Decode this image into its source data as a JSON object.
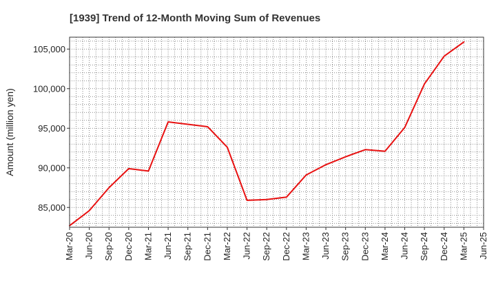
{
  "chart_data": {
    "type": "line",
    "title": "[1939]  Trend of 12-Month Moving Sum of Revenues",
    "xlabel": "",
    "ylabel": "Amount (million yen)",
    "x_ticks": [
      "Mar-20",
      "Jun-20",
      "Sep-20",
      "Dec-20",
      "Mar-21",
      "Jun-21",
      "Sep-21",
      "Dec-21",
      "Mar-22",
      "Jun-22",
      "Sep-22",
      "Dec-22",
      "Mar-23",
      "Jun-23",
      "Sep-23",
      "Dec-23",
      "Mar-24",
      "Jun-24",
      "Sep-24",
      "Dec-24",
      "Mar-25",
      "Jun-25"
    ],
    "y_ticks": [
      85000,
      90000,
      95000,
      100000,
      105000
    ],
    "y_tick_labels": [
      "85,000",
      "90,000",
      "95,000",
      "100,000",
      "105,000"
    ],
    "ylim": [
      82500,
      106500
    ],
    "grid": true,
    "series": [
      {
        "color": "#e81010",
        "x": [
          "Mar-20",
          "Jun-20",
          "Sep-20",
          "Dec-20",
          "Mar-21",
          "Jun-21",
          "Sep-21",
          "Dec-21",
          "Mar-22",
          "Jun-22",
          "Sep-22",
          "Dec-22",
          "Mar-23",
          "Jun-23",
          "Sep-23",
          "Dec-23",
          "Mar-24",
          "Jun-24",
          "Sep-24",
          "Dec-24",
          "Mar-25"
        ],
        "values": [
          82700,
          84600,
          87500,
          89900,
          89600,
          95800,
          95500,
          95200,
          92600,
          85900,
          86000,
          86300,
          89100,
          90400,
          91400,
          92300,
          92100,
          95100,
          100600,
          104100,
          105900
        ]
      }
    ]
  }
}
